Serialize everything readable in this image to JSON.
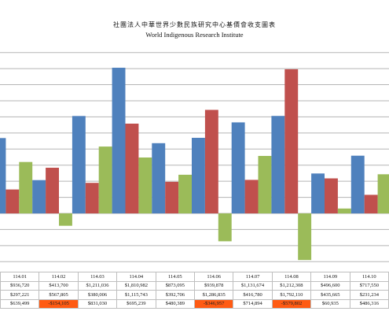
{
  "header": {
    "title_zh": "社團法人中華世界少數民族研究中心基價會收支圖表",
    "title_en": "World Indigenous Research Institute"
  },
  "chart_data": {
    "type": "bar",
    "title": "社團法人中華世界少數民族研究中心基價會收支圖表 World Indigenous Research Institute",
    "categories": [
      "114.01",
      "114.02",
      "114.03",
      "114.04",
      "114.05",
      "114.06",
      "114.07",
      "114.08",
      "114.09",
      "114.10"
    ],
    "series": [
      {
        "values": [
          936720,
          413700,
          1211036,
          1810982,
          873095,
          939878,
          1131674,
          1212308,
          496600,
          717550
        ],
        "color": "#4f81bd"
      },
      {
        "values": [
          297221,
          567805,
          380006,
          1115743,
          392706,
          1286835,
          416780,
          1792110,
          435665,
          231234
        ],
        "color": "#c0504d"
      },
      {
        "values": [
          639499,
          -154105,
          831030,
          695239,
          480389,
          -346957,
          714894,
          -579802,
          60935,
          486316
        ],
        "color": "#9bbb59"
      }
    ],
    "ylim": [
      -600000,
      2000000
    ],
    "grid": true,
    "legend": "none"
  },
  "table": {
    "rows": [
      [
        "114.01",
        "114.02",
        "114.03",
        "114.04",
        "114.05",
        "114.06",
        "114.07",
        "114.08",
        "114.09",
        "114.10"
      ],
      [
        "$936,720",
        "$413,700",
        "$1,211,036",
        "$1,810,982",
        "$873,095",
        "$939,878",
        "$1,131,674",
        "$1,212,308",
        "$496,600",
        "$717,550"
      ],
      [
        "$297,221",
        "$567,805",
        "$380,006",
        "$1,115,743",
        "$392,706",
        "$1,286,835",
        "$416,780",
        "$1,792,110",
        "$435,665",
        "$231,234"
      ],
      [
        "$639,499",
        "-$154,105",
        "$831,030",
        "$695,239",
        "$480,389",
        "-$346,957",
        "$714,894",
        "-$579,802",
        "$60,935",
        "$486,316"
      ]
    ]
  }
}
